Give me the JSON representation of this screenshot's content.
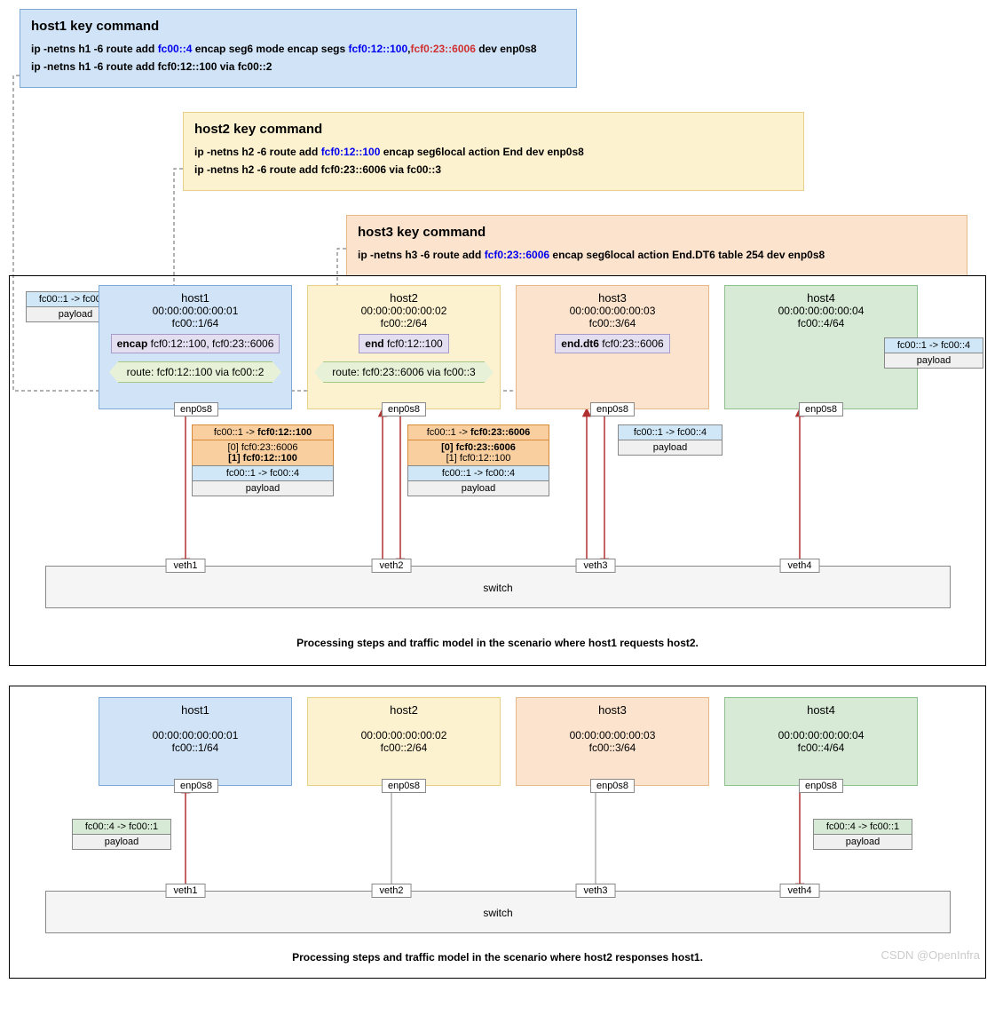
{
  "colors": {
    "blue_bg": "#d0e3f7",
    "blue_border": "#7ea9d6",
    "cream_bg": "#fdf2d0",
    "cream_border": "#e6cf87",
    "peach_bg": "#fce3cd",
    "peach_border": "#e6b98b",
    "green_bg": "#d6ead6",
    "green_border": "#8fbf8f",
    "orange_bg": "#f9cfa0",
    "orange_border": "#d68a3a",
    "lav_bg": "#e3dff0",
    "lav_border": "#a99bc9",
    "route_bg": "#e6f1d7",
    "route_border": "#a7c883",
    "sky_bg": "#cfe7f7",
    "gray_bg": "#f0f0f0",
    "arrow": "#b03030"
  },
  "cmd1": {
    "title": "host1 key command",
    "l1a": "ip -netns h1 -6 route add ",
    "l1b": "fc00::4",
    "l1c": " encap seg6 mode encap segs ",
    "l1d": "fcf0:12::100",
    "l1e": ",",
    "l1f": "fcf0:23::6006",
    "l1g": " dev enp0s8",
    "l2": "ip -netns h1 -6 route add fcf0:12::100 via fc00::2"
  },
  "cmd2": {
    "title": "host2 key command",
    "l1a": "ip -netns h2 -6 route add ",
    "l1b": "fcf0:12::100",
    "l1c": " encap seg6local action End dev enp0s8",
    "l2": "ip -netns h2 -6 route add fcf0:23::6006 via fc00::3"
  },
  "cmd3": {
    "title": "host3 key command",
    "l1a": "ip -netns h3 -6 route add ",
    "l1b": "fcf0:23::6006",
    "l1c": " encap seg6local action End.DT6 table 254 dev enp0s8"
  },
  "hosts": {
    "h1": {
      "name": "host1",
      "mac": "00:00:00:00:00:01",
      "ip": "fc00::1/64"
    },
    "h2": {
      "name": "host2",
      "mac": "00:00:00:00:00:02",
      "ip": "fc00::2/64"
    },
    "h3": {
      "name": "host3",
      "mac": "00:00:00:00:00:03",
      "ip": "fc00::3/64"
    },
    "h4": {
      "name": "host4",
      "mac": "00:00:00:00:00:04",
      "ip": "fc00::4/64"
    }
  },
  "tags": {
    "encap_b": "encap",
    "encap_t": "  fcf0:12::100, fcf0:23::6006",
    "end_b": "end",
    "end_t": "  fcf0:12::100",
    "enddt6_b": "end.dt6",
    "enddt6_t": " fcf0:23::6006",
    "route1": "route: fcf0:12::100 via fc00::2",
    "route2": "route: fcf0:23::6006 via fc00::3"
  },
  "iface": "enp0s8",
  "veth": [
    "veth1",
    "veth2",
    "veth3",
    "veth4"
  ],
  "switch": "switch",
  "pk_in": {
    "hdr": "fc00::1 -> fc00::4",
    "pl": "payload"
  },
  "pk_out": {
    "hdr": "fc00::4 -> fc00::1",
    "pl": "payload"
  },
  "pk1": {
    "outer": "fc00::1 -> ",
    "outer_b": "fcf0:12::100",
    "s0": "[0] fcf0:23::6006",
    "s1a": "[1]  ",
    "s1b": "fcf0:12::100",
    "inner": "fc00::1 -> fc00::4",
    "pl": "payload"
  },
  "pk2": {
    "outer": "fc00::1 -> ",
    "outer_b": "fcf0:23::6006",
    "s0a": "[0] ",
    "s0b": "fcf0:23::6006",
    "s1": "[1]   fcf0:12::100",
    "inner": "fc00::1 -> fc00::4",
    "pl": "payload"
  },
  "caption1": "Processing steps and traffic model in the scenario where host1 requests host2.",
  "caption2": "Processing steps and traffic model in the scenario where host2 responses host1.",
  "watermark": "CSDN @OpenInfra"
}
